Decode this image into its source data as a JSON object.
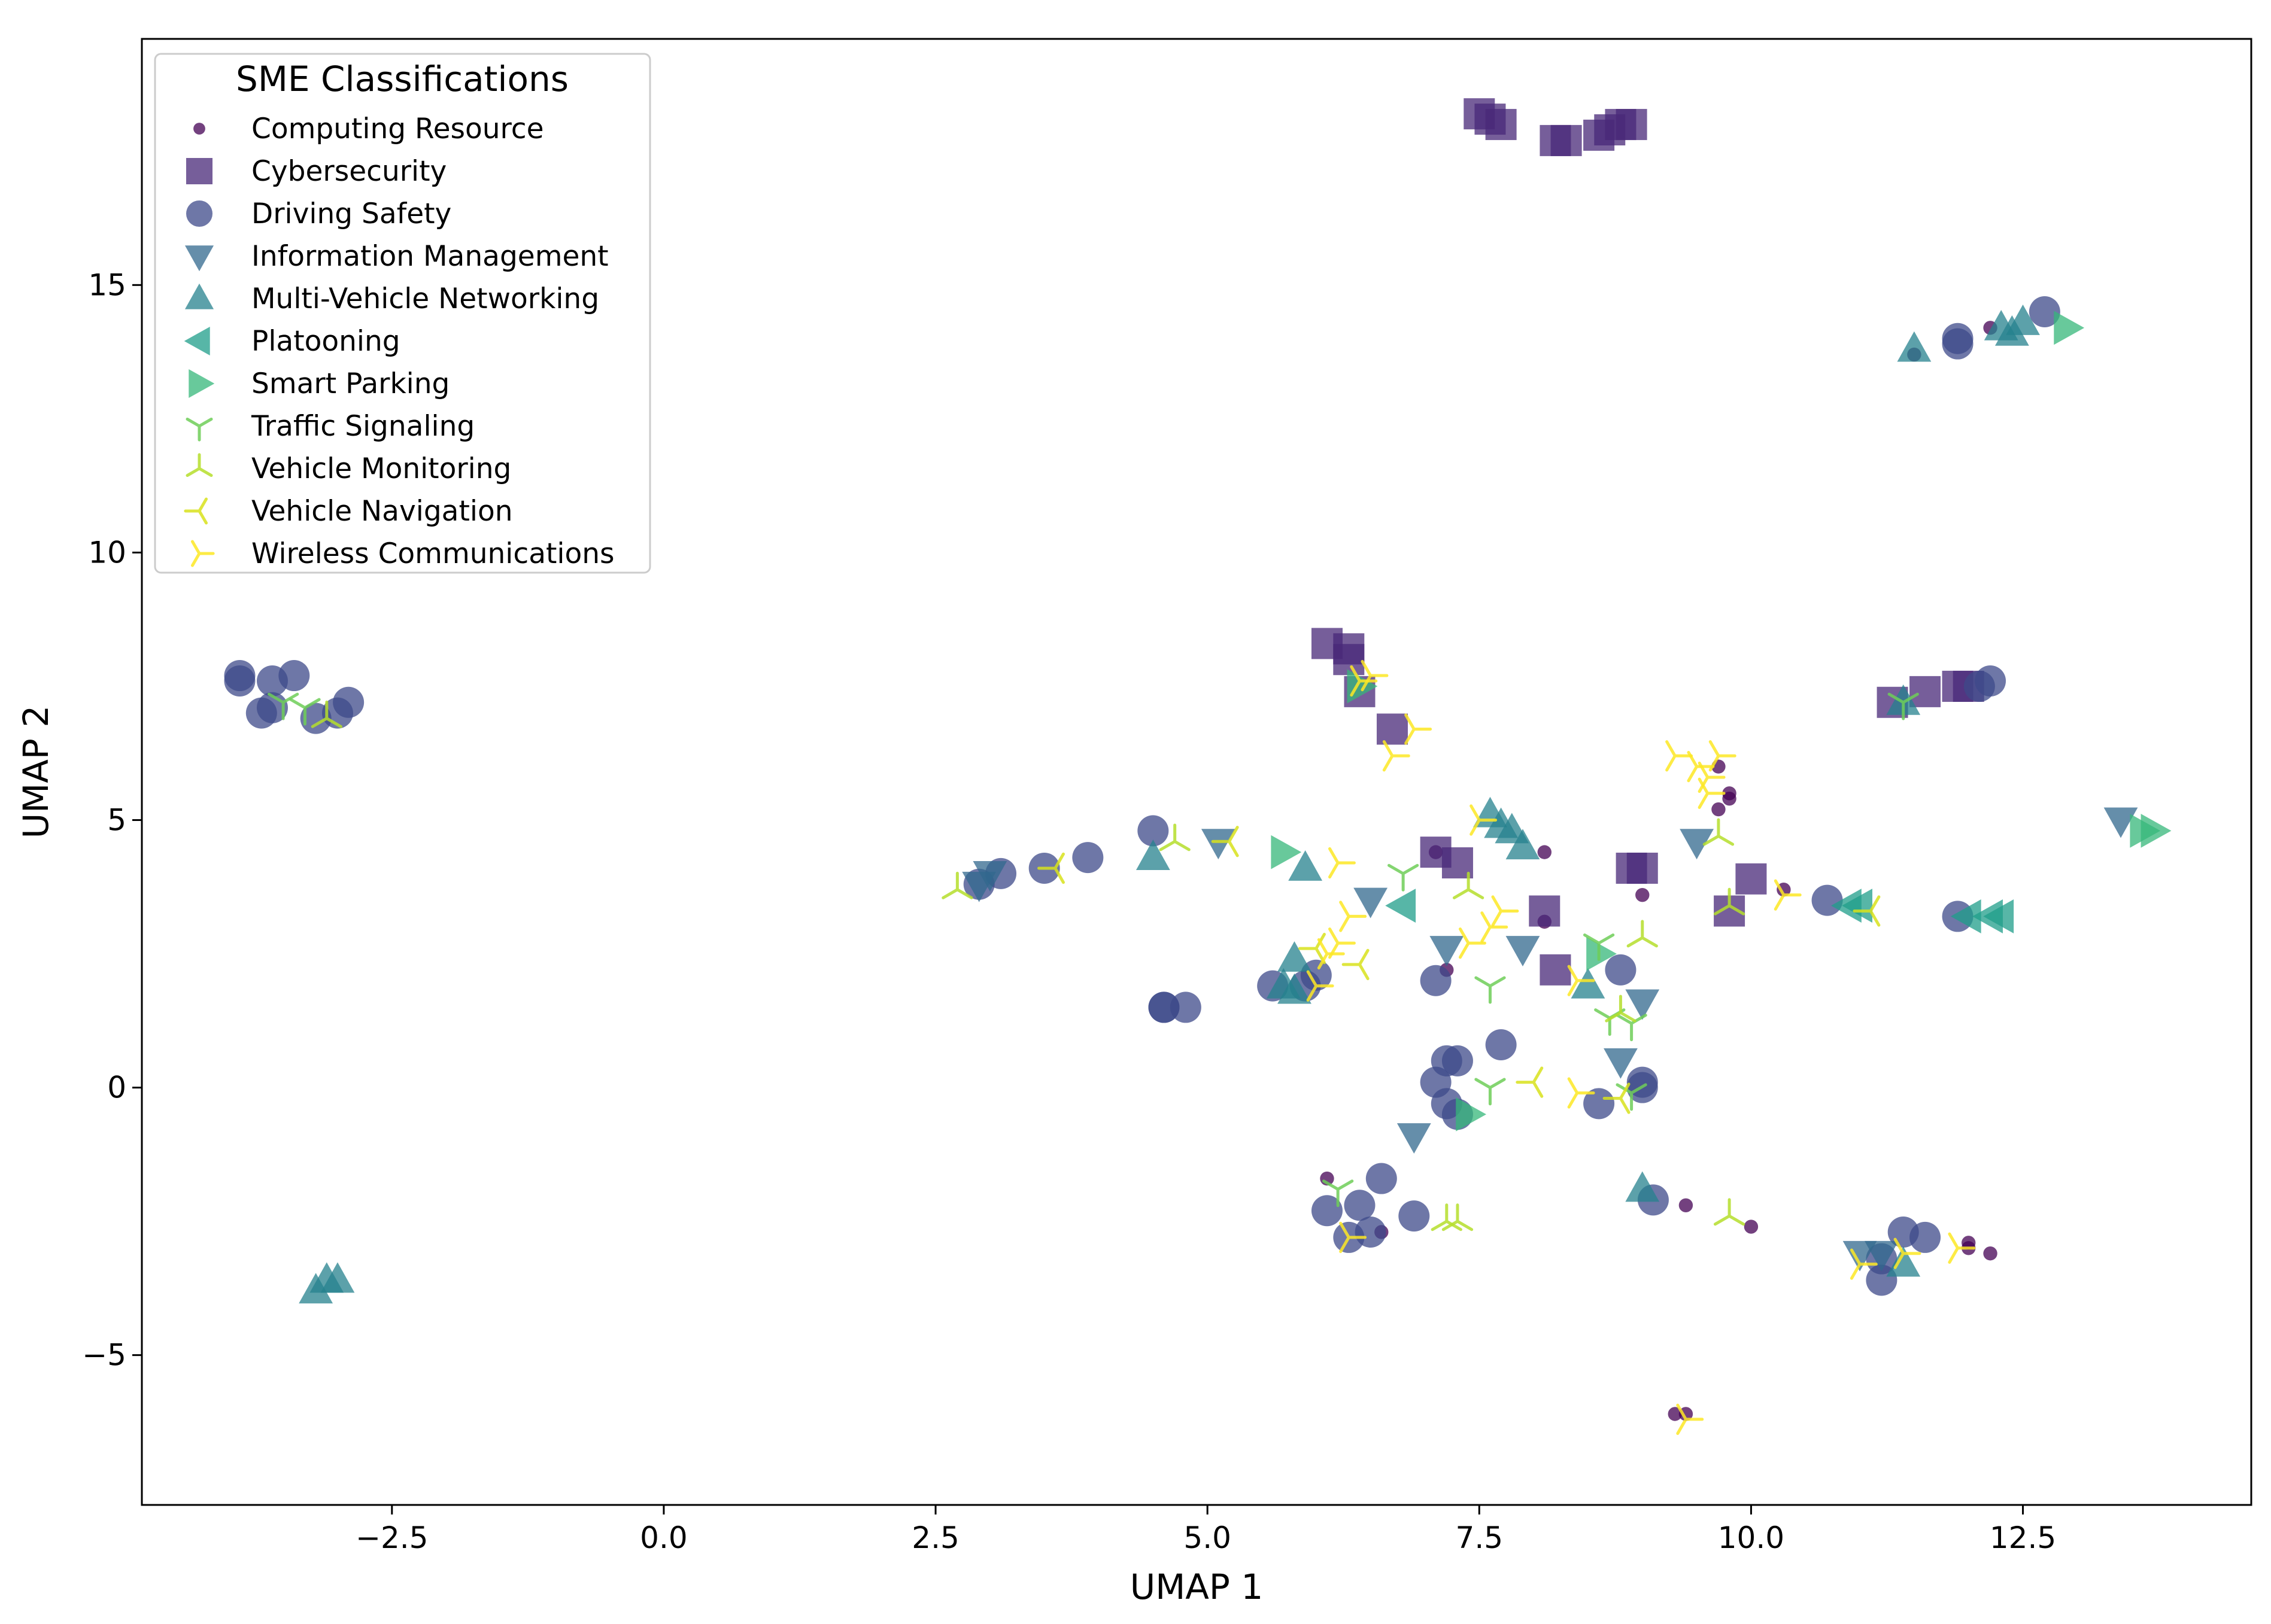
{
  "chart_data": {
    "type": "scatter",
    "title": "",
    "xlabel": "UMAP 1",
    "ylabel": "UMAP 2",
    "xlim": [
      -4.8,
      14.6
    ],
    "ylim": [
      -7.8,
      19.6
    ],
    "grid": false,
    "xticks": [
      -2.5,
      0.0,
      2.5,
      5.0,
      7.5,
      10.0,
      12.5
    ],
    "xtick_labels": [
      "−2.5",
      "0.0",
      "2.5",
      "5.0",
      "7.5",
      "10.0",
      "12.5"
    ],
    "yticks": [
      -5,
      0,
      5,
      10,
      15
    ],
    "ytick_labels": [
      "−5",
      "0",
      "5",
      "10",
      "15"
    ],
    "legend": {
      "title": "SME Classifications",
      "position": "top-left"
    },
    "series": [
      {
        "name": "Computing Resource",
        "marker": "dot",
        "color": "#440154",
        "points": [
          [
            12.2,
            14.2
          ],
          [
            11.5,
            13.7
          ],
          [
            9.7,
            6.0
          ],
          [
            9.8,
            5.5
          ],
          [
            9.7,
            5.2
          ],
          [
            9.8,
            5.4
          ],
          [
            8.1,
            4.4
          ],
          [
            9.0,
            3.6
          ],
          [
            7.1,
            4.4
          ],
          [
            8.1,
            3.1
          ],
          [
            7.2,
            2.2
          ],
          [
            10.3,
            3.7
          ],
          [
            6.1,
            -1.7
          ],
          [
            9.4,
            -2.2
          ],
          [
            10.0,
            -2.6
          ],
          [
            12.0,
            -2.9
          ],
          [
            12.0,
            -3.0
          ],
          [
            12.2,
            -3.1
          ],
          [
            9.3,
            -6.1
          ],
          [
            9.4,
            -6.1
          ],
          [
            6.6,
            -2.7
          ]
        ]
      },
      {
        "name": "Cybersecurity",
        "marker": "square",
        "color": "#482878",
        "points": [
          [
            7.5,
            18.2
          ],
          [
            7.6,
            18.1
          ],
          [
            7.7,
            18.0
          ],
          [
            8.2,
            17.7
          ],
          [
            8.3,
            17.7
          ],
          [
            8.6,
            17.8
          ],
          [
            8.7,
            17.9
          ],
          [
            8.8,
            18.0
          ],
          [
            8.9,
            18.0
          ],
          [
            6.1,
            8.3
          ],
          [
            6.3,
            8.2
          ],
          [
            6.3,
            8.0
          ],
          [
            6.4,
            7.4
          ],
          [
            6.7,
            6.7
          ],
          [
            7.1,
            4.4
          ],
          [
            7.3,
            4.2
          ],
          [
            8.1,
            3.3
          ],
          [
            8.2,
            2.2
          ],
          [
            8.9,
            4.1
          ],
          [
            9.0,
            4.1
          ],
          [
            10.0,
            3.9
          ],
          [
            9.8,
            3.3
          ],
          [
            11.3,
            7.2
          ],
          [
            11.6,
            7.4
          ],
          [
            11.9,
            7.5
          ],
          [
            12.0,
            7.5
          ]
        ]
      },
      {
        "name": "Driving Safety",
        "marker": "circle",
        "color": "#3e4989",
        "points": [
          [
            -3.9,
            7.7
          ],
          [
            -3.9,
            7.6
          ],
          [
            -3.6,
            7.6
          ],
          [
            -3.4,
            7.7
          ],
          [
            -3.7,
            7.0
          ],
          [
            -3.6,
            7.1
          ],
          [
            -3.2,
            6.9
          ],
          [
            -3.0,
            7.0
          ],
          [
            -2.9,
            7.2
          ],
          [
            2.9,
            3.8
          ],
          [
            3.1,
            4.0
          ],
          [
            3.5,
            4.1
          ],
          [
            3.9,
            4.3
          ],
          [
            4.5,
            4.8
          ],
          [
            4.6,
            1.5
          ],
          [
            4.6,
            1.5
          ],
          [
            4.8,
            1.5
          ],
          [
            5.6,
            1.9
          ],
          [
            5.9,
            1.9
          ],
          [
            6.0,
            2.1
          ],
          [
            7.1,
            2.0
          ],
          [
            7.1,
            0.1
          ],
          [
            7.2,
            0.5
          ],
          [
            7.3,
            0.5
          ],
          [
            7.7,
            0.8
          ],
          [
            7.2,
            -0.3
          ],
          [
            7.3,
            -0.5
          ],
          [
            6.6,
            -1.7
          ],
          [
            6.4,
            -2.2
          ],
          [
            6.1,
            -2.3
          ],
          [
            6.3,
            -2.8
          ],
          [
            6.5,
            -2.7
          ],
          [
            6.9,
            -2.4
          ],
          [
            8.8,
            2.2
          ],
          [
            9.0,
            0.1
          ],
          [
            9.0,
            0.0
          ],
          [
            8.6,
            -0.3
          ],
          [
            9.1,
            -2.1
          ],
          [
            10.7,
            3.5
          ],
          [
            11.9,
            3.2
          ],
          [
            11.2,
            -3.2
          ],
          [
            11.2,
            -3.6
          ],
          [
            11.4,
            -2.7
          ],
          [
            11.6,
            -2.8
          ],
          [
            11.9,
            14.0
          ],
          [
            11.9,
            13.9
          ],
          [
            12.7,
            14.5
          ],
          [
            12.1,
            7.5
          ],
          [
            12.2,
            7.6
          ]
        ]
      },
      {
        "name": "Information Management",
        "marker": "triangle_down",
        "color": "#31688e",
        "points": [
          [
            2.9,
            3.8
          ],
          [
            3.0,
            4.0
          ],
          [
            5.1,
            4.6
          ],
          [
            6.5,
            3.5
          ],
          [
            7.2,
            2.6
          ],
          [
            7.9,
            2.6
          ],
          [
            6.9,
            -0.9
          ],
          [
            9.0,
            1.6
          ],
          [
            8.8,
            0.5
          ],
          [
            9.5,
            4.6
          ],
          [
            13.4,
            5.0
          ],
          [
            11.0,
            -3.1
          ],
          [
            11.2,
            -3.1
          ]
        ]
      },
      {
        "name": "Multi-Vehicle Networking",
        "marker": "triangle_up",
        "color": "#26828e",
        "points": [
          [
            -3.2,
            -3.8
          ],
          [
            -3.1,
            -3.6
          ],
          [
            -3.0,
            -3.6
          ],
          [
            4.5,
            4.3
          ],
          [
            5.8,
            2.4
          ],
          [
            5.7,
            1.9
          ],
          [
            5.8,
            1.8
          ],
          [
            5.9,
            4.1
          ],
          [
            7.6,
            5.1
          ],
          [
            7.7,
            4.9
          ],
          [
            7.8,
            4.8
          ],
          [
            7.9,
            4.5
          ],
          [
            8.5,
            1.9
          ],
          [
            9.0,
            -1.9
          ],
          [
            11.4,
            -3.3
          ],
          [
            11.5,
            13.8
          ],
          [
            12.3,
            14.2
          ],
          [
            12.4,
            14.1
          ],
          [
            12.5,
            14.3
          ],
          [
            11.4,
            7.2
          ]
        ]
      },
      {
        "name": "Platooning",
        "marker": "triangle_left",
        "color": "#1f9e89",
        "points": [
          [
            6.8,
            3.4
          ],
          [
            10.9,
            3.4
          ],
          [
            11.0,
            3.4
          ],
          [
            12.0,
            3.2
          ],
          [
            12.2,
            3.2
          ],
          [
            12.3,
            3.2
          ]
        ]
      },
      {
        "name": "Smart Parking",
        "marker": "triangle_right",
        "color": "#35b779",
        "points": [
          [
            5.7,
            4.4
          ],
          [
            6.4,
            7.5
          ],
          [
            7.4,
            -0.5
          ],
          [
            8.6,
            2.5
          ],
          [
            12.9,
            14.2
          ],
          [
            13.6,
            4.8
          ],
          [
            13.7,
            4.8
          ]
        ]
      },
      {
        "name": "Traffic Signaling",
        "marker": "tri_down",
        "color": "#6ece58",
        "points": [
          [
            -3.5,
            7.2
          ],
          [
            -3.3,
            7.1
          ],
          [
            6.8,
            4.0
          ],
          [
            7.6,
            1.9
          ],
          [
            8.6,
            2.7
          ],
          [
            8.7,
            1.3
          ],
          [
            8.9,
            1.2
          ],
          [
            7.6,
            0.0
          ],
          [
            8.9,
            -0.1
          ],
          [
            6.2,
            -1.9
          ],
          [
            11.4,
            7.2
          ]
        ]
      },
      {
        "name": "Vehicle Monitoring",
        "marker": "tri_up",
        "color": "#b5de2b",
        "points": [
          [
            -3.1,
            6.9
          ],
          [
            2.7,
            3.7
          ],
          [
            4.7,
            4.6
          ],
          [
            7.4,
            3.7
          ],
          [
            7.2,
            -2.5
          ],
          [
            7.3,
            -2.5
          ],
          [
            9.8,
            -2.4
          ],
          [
            9.0,
            2.8
          ],
          [
            8.8,
            1.4
          ],
          [
            9.7,
            4.7
          ],
          [
            9.8,
            3.4
          ]
        ]
      },
      {
        "name": "Vehicle Navigation",
        "marker": "tri_left",
        "color": "#d8e21c",
        "points": [
          [
            5.2,
            4.6
          ],
          [
            6.0,
            2.6
          ],
          [
            6.4,
            2.3
          ],
          [
            8.0,
            0.1
          ],
          [
            8.8,
            -0.2
          ],
          [
            11.1,
            3.3
          ],
          [
            3.6,
            4.1
          ]
        ]
      },
      {
        "name": "Wireless Communications",
        "marker": "tri_right",
        "color": "#fde725",
        "points": [
          [
            6.4,
            7.6
          ],
          [
            6.5,
            7.7
          ],
          [
            6.7,
            6.2
          ],
          [
            6.9,
            6.7
          ],
          [
            6.2,
            4.2
          ],
          [
            6.3,
            3.2
          ],
          [
            6.2,
            2.7
          ],
          [
            6.1,
            2.5
          ],
          [
            6.0,
            1.9
          ],
          [
            7.5,
            5.0
          ],
          [
            7.7,
            3.3
          ],
          [
            7.6,
            3.0
          ],
          [
            7.4,
            2.7
          ],
          [
            9.3,
            6.2
          ],
          [
            9.5,
            6.0
          ],
          [
            9.6,
            5.8
          ],
          [
            9.7,
            6.2
          ],
          [
            9.6,
            5.5
          ],
          [
            8.4,
            2.0
          ],
          [
            8.4,
            -0.1
          ],
          [
            6.3,
            -2.8
          ],
          [
            11.0,
            -3.3
          ],
          [
            11.4,
            -3.1
          ],
          [
            11.9,
            -3.0
          ],
          [
            9.4,
            -6.2
          ],
          [
            10.3,
            3.6
          ]
        ]
      }
    ]
  }
}
